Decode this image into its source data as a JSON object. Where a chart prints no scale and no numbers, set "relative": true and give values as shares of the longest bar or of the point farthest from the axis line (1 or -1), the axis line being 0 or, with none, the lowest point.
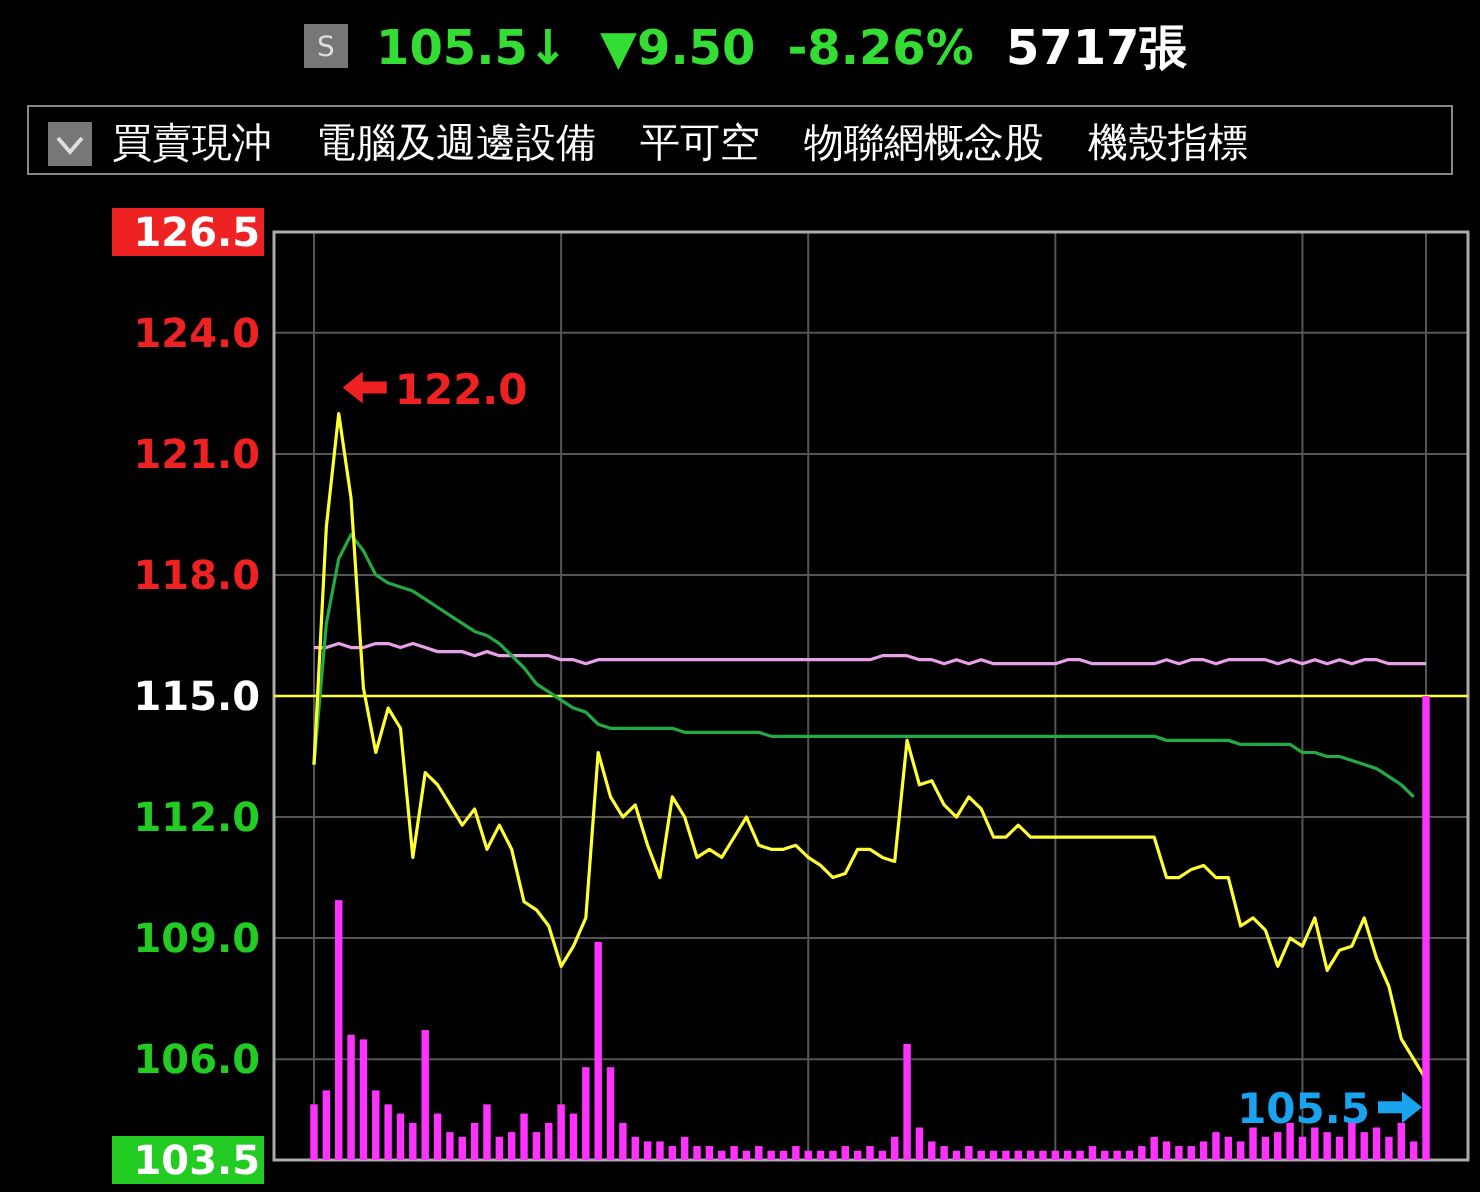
{
  "chart_data": [
    {
      "type": "line",
      "annotations": [
        "S",
        "105.5↓",
        "▼9.50",
        "-8.26%",
        "5717張",
        "買賣現沖",
        "電腦及週邊設備",
        "平可空",
        "物聯網概念股",
        "機殼指標",
        "122.0",
        "105.5"
      ],
      "categories": [
        null,
        null,
        null,
        null,
        null,
        null,
        null,
        null,
        null,
        null,
        null,
        null,
        null,
        null,
        null,
        null,
        null,
        null,
        null,
        null,
        null,
        null,
        null,
        null,
        null,
        null,
        null,
        null,
        null,
        null,
        null,
        null,
        null,
        null,
        null,
        null,
        null,
        null,
        null,
        null,
        null,
        null,
        null,
        null,
        null,
        null,
        null,
        null,
        null,
        null,
        null,
        null,
        null,
        null,
        null,
        null,
        null,
        null,
        null,
        null,
        null,
        null,
        null,
        null,
        null,
        null,
        null,
        null,
        null,
        null,
        null,
        null,
        null,
        null,
        null,
        null,
        null,
        null,
        null,
        null,
        null,
        null,
        null,
        null,
        null,
        null,
        null,
        null,
        null,
        null,
        null
      ],
      "series": [
        {
          "color": "#e8a0e8",
          "values": [
            116.2,
            116.2,
            116.3,
            116.2,
            116.2,
            116.3,
            116.3,
            116.2,
            116.3,
            116.2,
            116.1,
            116.1,
            116.1,
            116.0,
            116.1,
            116.0,
            116.0,
            116.0,
            116.0,
            116.0,
            115.9,
            115.9,
            115.8,
            115.9,
            115.9,
            115.9,
            115.9,
            115.9,
            115.9,
            115.9,
            115.9,
            115.9,
            115.9,
            115.9,
            115.9,
            115.9,
            115.9,
            115.9,
            115.9,
            115.9,
            115.9,
            115.9,
            115.9,
            115.9,
            115.9,
            115.9,
            116.0,
            116.0,
            116.0,
            115.9,
            115.9,
            115.8,
            115.9,
            115.8,
            115.9,
            115.8,
            115.8,
            115.8,
            115.8,
            115.8,
            115.8,
            115.9,
            115.9,
            115.8,
            115.8,
            115.8,
            115.8,
            115.8,
            115.8,
            115.9,
            115.8,
            115.9,
            115.9,
            115.8,
            115.9,
            115.9,
            115.9,
            115.9,
            115.8,
            115.9,
            115.8,
            115.9,
            115.8,
            115.9,
            115.8,
            115.9,
            115.9,
            115.8,
            115.8,
            115.8,
            115.8
          ]
        },
        {
          "color": "#22aa44",
          "values": [
            113.3,
            116.8,
            118.4,
            119.0,
            118.6,
            118.0,
            117.8,
            117.7,
            117.6,
            117.4,
            117.2,
            117.0,
            116.8,
            116.6,
            116.5,
            116.3,
            116.0,
            115.7,
            115.3,
            115.1,
            114.9,
            114.7,
            114.6,
            114.3,
            114.2,
            114.2,
            114.2,
            114.2,
            114.2,
            114.2,
            114.1,
            114.1,
            114.1,
            114.1,
            114.1,
            114.1,
            114.1,
            114.0,
            114.0,
            114.0,
            114.0,
            114.0,
            114.0,
            114.0,
            114.0,
            114.0,
            114.0,
            114.0,
            114.0,
            114.0,
            114.0,
            114.0,
            114.0,
            114.0,
            114.0,
            114.0,
            114.0,
            114.0,
            114.0,
            114.0,
            114.0,
            114.0,
            114.0,
            114.0,
            114.0,
            114.0,
            114.0,
            114.0,
            114.0,
            113.9,
            113.9,
            113.9,
            113.9,
            113.9,
            113.9,
            113.8,
            113.8,
            113.8,
            113.8,
            113.8,
            113.6,
            113.6,
            113.5,
            113.5,
            113.4,
            113.3,
            113.2,
            113.0,
            112.8,
            112.5,
            null
          ]
        },
        {
          "color": "#ffff33",
          "values": [
            113.3,
            119.2,
            122.0,
            119.9,
            115.2,
            113.6,
            114.7,
            114.2,
            111.0,
            113.1,
            112.8,
            112.3,
            111.8,
            112.2,
            111.2,
            111.8,
            111.2,
            109.9,
            109.7,
            109.3,
            108.3,
            108.8,
            109.5,
            113.6,
            112.5,
            112.0,
            112.3,
            111.3,
            110.5,
            112.5,
            112.0,
            111.0,
            111.2,
            111.0,
            111.5,
            112.0,
            111.3,
            111.2,
            111.2,
            111.3,
            111.0,
            110.8,
            110.5,
            110.6,
            111.2,
            111.2,
            111.0,
            110.9,
            113.9,
            112.8,
            112.9,
            112.3,
            112.0,
            112.5,
            112.2,
            111.5,
            111.5,
            111.8,
            111.5,
            111.5,
            111.5,
            111.5,
            111.5,
            111.5,
            111.5,
            111.5,
            111.5,
            111.5,
            111.5,
            110.5,
            110.5,
            110.7,
            110.8,
            110.5,
            110.5,
            109.3,
            109.5,
            109.2,
            108.3,
            109.0,
            108.8,
            109.5,
            108.2,
            108.7,
            108.8,
            109.5,
            108.5,
            107.8,
            106.5,
            106.0,
            105.5
          ]
        }
      ],
      "ylim": [
        103.5,
        126.5
      ],
      "yticks": [
        {
          "value": 126.5,
          "label": "126.5"
        },
        {
          "value": 124,
          "label": "124.0"
        },
        {
          "value": 121,
          "label": "121.0"
        },
        {
          "value": 118,
          "label": "118.0"
        },
        {
          "value": 115,
          "label": "115.0"
        },
        {
          "value": 112,
          "label": "112.0"
        },
        {
          "value": 109,
          "label": "109.0"
        },
        {
          "value": 106,
          "label": "106.0"
        },
        {
          "value": 103.5,
          "label": "103.5"
        }
      ],
      "ref_lines": [
        {
          "axis": "y",
          "value": 115,
          "color": "#ffff33"
        }
      ],
      "grid": true
    },
    {
      "type": "bar",
      "relative": true,
      "color": "#ff33ff",
      "categories": [
        null,
        null,
        null,
        null,
        null,
        null,
        null,
        null,
        null,
        null,
        null,
        null,
        null,
        null,
        null,
        null,
        null,
        null,
        null,
        null,
        null,
        null,
        null,
        null,
        null,
        null,
        null,
        null,
        null,
        null,
        null,
        null,
        null,
        null,
        null,
        null,
        null,
        null,
        null,
        null,
        null,
        null,
        null,
        null,
        null,
        null,
        null,
        null,
        null,
        null,
        null,
        null,
        null,
        null,
        null,
        null,
        null,
        null,
        null,
        null,
        null,
        null,
        null,
        null,
        null,
        null,
        null,
        null,
        null,
        null,
        null,
        null,
        null,
        null,
        null,
        null,
        null,
        null,
        null,
        null,
        null,
        null,
        null,
        null,
        null,
        null,
        null,
        null,
        null,
        null,
        null
      ],
      "values": [
        0.12,
        0.15,
        0.56,
        0.27,
        0.26,
        0.15,
        0.12,
        0.1,
        0.08,
        0.28,
        0.1,
        0.06,
        0.05,
        0.08,
        0.12,
        0.05,
        0.06,
        0.1,
        0.06,
        0.08,
        0.12,
        0.1,
        0.2,
        0.47,
        0.2,
        0.08,
        0.05,
        0.04,
        0.04,
        0.03,
        0.05,
        0.03,
        0.03,
        0.02,
        0.03,
        0.02,
        0.03,
        0.02,
        0.02,
        0.03,
        0.02,
        0.02,
        0.02,
        0.03,
        0.02,
        0.03,
        0.02,
        0.05,
        0.25,
        0.07,
        0.04,
        0.03,
        0.02,
        0.03,
        0.02,
        0.02,
        0.02,
        0.02,
        0.02,
        0.02,
        0.02,
        0.02,
        0.02,
        0.03,
        0.02,
        0.02,
        0.02,
        0.03,
        0.05,
        0.04,
        0.03,
        0.03,
        0.04,
        0.06,
        0.05,
        0.04,
        0.07,
        0.05,
        0.06,
        0.08,
        0.05,
        0.07,
        0.06,
        0.05,
        0.08,
        0.06,
        0.07,
        0.05,
        0.08,
        0.04,
        1.0
      ]
    }
  ]
}
